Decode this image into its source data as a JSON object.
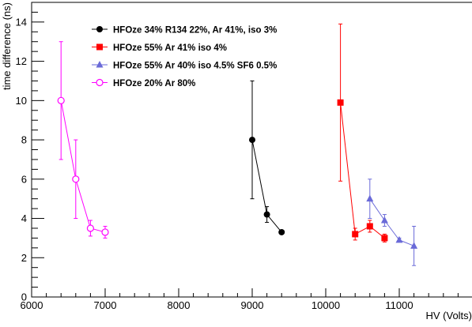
{
  "chart_data": {
    "type": "scatter",
    "title": "",
    "xlabel": "HV (Volts)",
    "ylabel": "time difference (ns)",
    "xlim": [
      6000,
      12000
    ],
    "ylim": [
      0,
      15
    ],
    "x_tick_labels": [
      "6000",
      "7000",
      "8000",
      "9000",
      "10000",
      "11000"
    ],
    "y_tick_labels": [
      "0",
      "2",
      "4",
      "6",
      "8",
      "10",
      "12",
      "14"
    ],
    "grid": false,
    "legend_position": "top-left",
    "series": [
      {
        "name": "HFOze 34% R134 22%, Ar 41%, iso 3%",
        "color": "#000000",
        "marker": "filled-circle",
        "points": [
          {
            "x": 9000,
            "y": 8.0,
            "err": 3.0
          },
          {
            "x": 9200,
            "y": 4.2,
            "err": 0.4
          },
          {
            "x": 9400,
            "y": 3.3,
            "err": 0.1
          }
        ]
      },
      {
        "name": "HFOze 55% Ar 41% iso 4%",
        "color": "#ff0000",
        "marker": "filled-square",
        "points": [
          {
            "x": 10200,
            "y": 9.9,
            "err": 4.0
          },
          {
            "x": 10400,
            "y": 3.2,
            "err": 0.3
          },
          {
            "x": 10600,
            "y": 3.6,
            "err": 0.3
          },
          {
            "x": 10800,
            "y": 3.0,
            "err": 0.2
          }
        ]
      },
      {
        "name": "HFOze 55% Ar 40% iso 4.5% SF6 0.5%",
        "color": "#6a6ad8",
        "marker": "filled-triangle",
        "points": [
          {
            "x": 10600,
            "y": 5.0,
            "err": 1.0
          },
          {
            "x": 10800,
            "y": 3.9,
            "err": 0.3
          },
          {
            "x": 11000,
            "y": 2.9,
            "err": 0.1
          },
          {
            "x": 11200,
            "y": 2.6,
            "err": 1.0
          }
        ]
      },
      {
        "name": "HFOze 20% Ar 80%",
        "color": "#ff00ff",
        "marker": "open-circle",
        "points": [
          {
            "x": 6400,
            "y": 10.0,
            "err": 3.0
          },
          {
            "x": 6600,
            "y": 6.0,
            "err": 2.0
          },
          {
            "x": 6800,
            "y": 3.5,
            "err": 0.4
          },
          {
            "x": 7000,
            "y": 3.3,
            "err": 0.3
          }
        ]
      }
    ]
  }
}
